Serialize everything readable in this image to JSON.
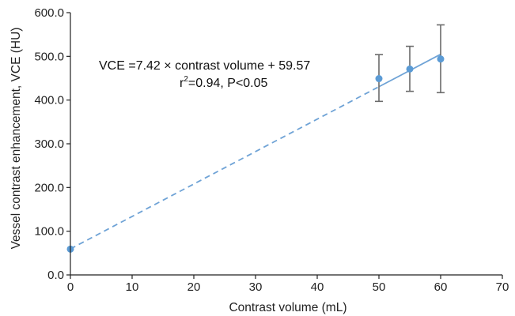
{
  "chart_data": {
    "type": "scatter",
    "xlabel": "Contrast volume (mL)",
    "ylabel": "Vessel contrast enhancement, VCE (HU)",
    "xlim": [
      0,
      70
    ],
    "ylim": [
      0,
      600
    ],
    "x_ticks": [
      "0",
      "10",
      "20",
      "30",
      "40",
      "50",
      "60",
      "70"
    ],
    "y_ticks": [
      "0.0",
      "100.0",
      "200.0",
      "300.0",
      "400.0",
      "500.0",
      "600.0"
    ],
    "grid": false,
    "points": [
      {
        "x": 0,
        "y": 59,
        "err_low": null,
        "err_high": null
      },
      {
        "x": 50,
        "y": 449,
        "err_low": 397,
        "err_high": 504
      },
      {
        "x": 55,
        "y": 471,
        "err_low": 420,
        "err_high": 523
      },
      {
        "x": 60,
        "y": 494,
        "err_low": 417,
        "err_high": 572
      }
    ],
    "fit": {
      "slope": 7.42,
      "intercept": 59.57,
      "solid_range": [
        50,
        60
      ],
      "dashed_range": [
        0,
        50
      ]
    },
    "annotations": {
      "equation": "VCE =7.42 × contrast volume + 59.57",
      "r2_prefix": "r",
      "r2_sup": "2",
      "r2_rest": "=0.94, P<0.05"
    },
    "colors": {
      "points": "#5b9bd5",
      "fit_line": "#6fa3d6",
      "error_bars": "#6b6b6b",
      "axis": "#222222"
    }
  }
}
